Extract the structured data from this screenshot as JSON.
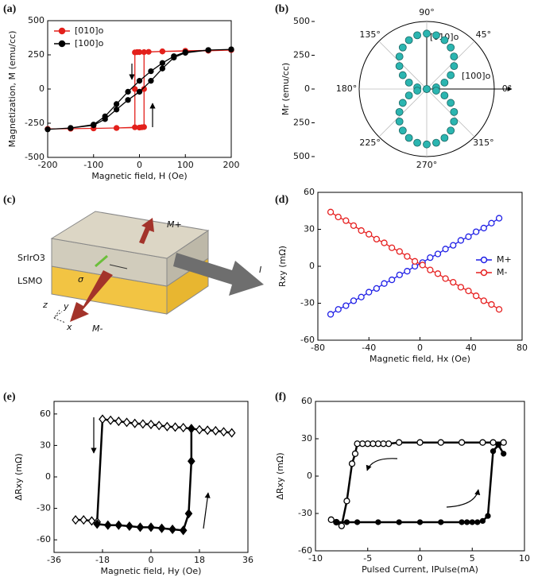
{
  "chart_data": [
    {
      "type": "line",
      "label": "(a)",
      "x_label": "Magnetic field, H (Oe)",
      "y_label": "Magnetization, M (emu/cc)",
      "xlim": [
        -200,
        200
      ],
      "xticks": [
        -200,
        -100,
        0,
        100,
        200
      ],
      "ylim": [
        -500,
        500
      ],
      "yticks": [
        -500,
        -250,
        0,
        250,
        500
      ],
      "legend": "upper left",
      "series": [
        {
          "name": "[010]o",
          "color": "#e3201b",
          "marker": "circle",
          "filled": true,
          "x": [
            200,
            150,
            100,
            50,
            20,
            0,
            -5,
            -10,
            -10,
            -10,
            -50,
            -100,
            -150,
            -200,
            -200,
            -150,
            -100,
            -50,
            0,
            5,
            10,
            10,
            10,
            50,
            100,
            150,
            200
          ],
          "values": [
            285,
            280,
            278,
            275,
            272,
            270,
            270,
            268,
            0,
            -280,
            -285,
            -288,
            -290,
            -292,
            -292,
            -290,
            -288,
            -285,
            -282,
            -280,
            -278,
            0,
            270,
            275,
            280,
            282,
            285
          ]
        },
        {
          "name": "[100]o",
          "color": "#000000",
          "marker": "circle",
          "filled": true,
          "x": [
            200,
            150,
            100,
            75,
            50,
            25,
            0,
            -25,
            -50,
            -75,
            -100,
            -150,
            -200,
            -150,
            -100,
            -75,
            -50,
            -25,
            0,
            25,
            50,
            75,
            100,
            150,
            200
          ],
          "values": [
            290,
            285,
            270,
            240,
            190,
            130,
            60,
            -20,
            -110,
            -200,
            -260,
            -285,
            -295,
            -285,
            -265,
            -220,
            -150,
            -80,
            -20,
            60,
            150,
            230,
            265,
            285,
            290
          ]
        }
      ]
    },
    {
      "type": "polar",
      "label": "(b)",
      "y_label": "Mr (emu/cc)",
      "ylim": [
        -500,
        500
      ],
      "yticks": [
        500,
        250,
        0,
        {
          "value": -250,
          "label": "250"
        },
        {
          "value": -500,
          "label": "500"
        }
      ],
      "angle_ticks": [
        {
          "value": 0,
          "label": "0°"
        },
        {
          "value": 45,
          "label": "45°"
        },
        {
          "value": 90,
          "label": "90°"
        },
        {
          "value": 135,
          "label": "135°"
        },
        {
          "value": 180,
          "label": "180°"
        },
        {
          "value": 225,
          "label": "225°"
        },
        {
          "value": 270,
          "label": "270°"
        },
        {
          "value": 315,
          "label": "315°"
        }
      ],
      "annotations": [
        "[010]o",
        "[100]o"
      ],
      "series": [
        {
          "color": "#2bb5b0",
          "theta": [
            0,
            10,
            20,
            30,
            40,
            50,
            60,
            70,
            80,
            90,
            100,
            110,
            120,
            130,
            140,
            150,
            160,
            170,
            180,
            190,
            200,
            210,
            220,
            230,
            240,
            250,
            260,
            270,
            280,
            290,
            300,
            310,
            320,
            330,
            340,
            350
          ],
          "values": [
            0,
            71,
            140,
            205,
            264,
            314,
            355,
            385,
            404,
            410,
            404,
            385,
            355,
            314,
            264,
            205,
            140,
            71,
            0,
            71,
            140,
            205,
            264,
            314,
            355,
            385,
            404,
            410,
            404,
            385,
            355,
            314,
            264,
            205,
            140,
            71
          ]
        }
      ]
    },
    {
      "type": "diagram",
      "label": "(c)",
      "labels": [
        "SrIrO3",
        "LSMO",
        "M+",
        "M-",
        "I",
        "σ",
        "z",
        "y",
        "x"
      ]
    },
    {
      "type": "line",
      "label": "(d)",
      "x_label": "Magnetic field, Hx (Oe)",
      "y_label": "Rxy (mΩ)",
      "xlim": [
        -80,
        80
      ],
      "xticks": [
        -80,
        -40,
        0,
        40,
        80
      ],
      "ylim": [
        -60,
        60
      ],
      "yticks": [
        -60,
        -30,
        0,
        30,
        60
      ],
      "legend": "center right",
      "series": [
        {
          "name": "M+",
          "color": "#1f1fe6",
          "marker": "circle",
          "filled": false,
          "x": [
            -70,
            -64,
            -58,
            -52,
            -46,
            -40,
            -34,
            -28,
            -22,
            -16,
            -10,
            -4,
            2,
            8,
            14,
            20,
            26,
            32,
            38,
            44,
            50,
            56,
            62
          ],
          "values": [
            -39,
            -35,
            -32,
            -28,
            -25,
            -21,
            -18,
            -14,
            -11,
            -7,
            -4,
            0,
            3,
            7,
            10,
            14,
            17,
            21,
            24,
            28,
            31,
            35,
            39
          ]
        },
        {
          "name": "M-",
          "color": "#e61f1f",
          "marker": "circle",
          "filled": false,
          "x": [
            -70,
            -64,
            -58,
            -52,
            -46,
            -40,
            -34,
            -28,
            -22,
            -16,
            -10,
            -4,
            2,
            8,
            14,
            20,
            26,
            32,
            38,
            44,
            50,
            56,
            62
          ],
          "values": [
            44,
            40,
            37,
            33,
            29,
            26,
            22,
            19,
            15,
            12,
            8,
            4,
            1,
            -3,
            -6,
            -10,
            -13,
            -17,
            -20,
            -24,
            -28,
            -31,
            -35
          ]
        }
      ]
    },
    {
      "type": "line",
      "label": "(e)",
      "x_label": "Magnetic field, Hy (Oe)",
      "y_label": "ΔRxy (mΩ)",
      "xlim": [
        -36,
        36
      ],
      "xticks": [
        -36,
        -18,
        0,
        18,
        36
      ],
      "ylim": [
        -72,
        72
      ],
      "yticks": [
        -60,
        -30,
        0,
        30,
        60
      ],
      "series": [
        {
          "color": "#000000",
          "marker": "diamond",
          "filled": false,
          "x": [
            30,
            27,
            24,
            21,
            18,
            15,
            12,
            9,
            6,
            3,
            0,
            -3,
            -6,
            -9,
            -12,
            -15,
            -18,
            -20,
            -22,
            -25,
            -28
          ],
          "values": [
            42,
            43,
            44,
            44.5,
            45,
            46,
            47,
            47.5,
            48,
            49,
            50,
            50.5,
            51,
            52,
            53,
            54,
            55,
            -43,
            -42,
            -41,
            -41
          ]
        },
        {
          "color": "#000000",
          "marker": "diamond",
          "filled": true,
          "x": [
            -20,
            -16,
            -12,
            -8,
            -4,
            0,
            4,
            8,
            12,
            14,
            15,
            15
          ],
          "values": [
            -45,
            -46,
            -46,
            -47,
            -48,
            -48,
            -49,
            -50,
            -51,
            -35,
            15,
            46
          ]
        }
      ]
    },
    {
      "type": "line",
      "label": "(f)",
      "x_label": "Pulsed Current, IPulse(mA)",
      "y_label": "ΔRxy (mΩ)",
      "xlim": [
        -10,
        10
      ],
      "xticks": [
        -10,
        -5,
        0,
        5,
        10
      ],
      "ylim": [
        -60,
        60
      ],
      "yticks": [
        -60,
        -30,
        0,
        30,
        60
      ],
      "series": [
        {
          "color": "#000000",
          "marker": "circle",
          "filled": false,
          "x": [
            8,
            7,
            6,
            4,
            2,
            0,
            -2,
            -3,
            -3.5,
            -4,
            -4.5,
            -5,
            -5.5,
            -6,
            -6.2,
            -6.5,
            -7,
            -7.5,
            -8,
            -8.5
          ],
          "values": [
            27,
            27,
            27,
            27,
            27,
            27,
            27,
            26,
            26,
            26,
            26,
            26,
            26,
            26,
            18,
            10,
            -20,
            -40,
            -37,
            -35
          ]
        },
        {
          "color": "#000000",
          "marker": "circle",
          "filled": true,
          "x": [
            -8,
            -7,
            -6,
            -4,
            -2,
            0,
            2,
            4,
            4.5,
            5,
            5.5,
            6,
            6.5,
            7,
            7.5,
            8
          ],
          "values": [
            -37,
            -37,
            -37,
            -37,
            -37,
            -37,
            -37,
            -37,
            -37,
            -37,
            -37,
            -36,
            -32,
            20,
            25,
            18
          ]
        }
      ]
    }
  ]
}
